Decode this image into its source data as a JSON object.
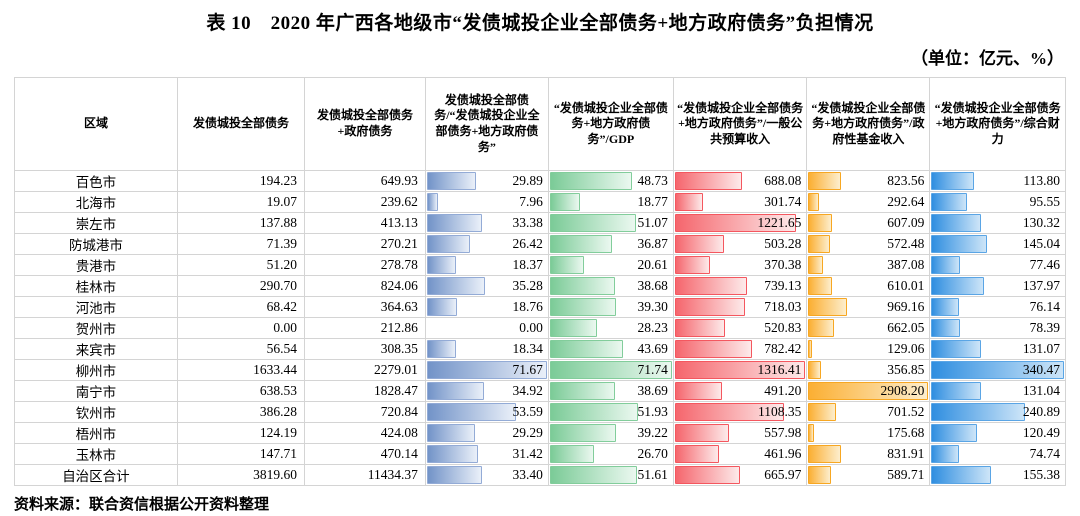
{
  "title": "表 10　2020 年广西各地级市“发债城投企业全部债务+地方政府债务”负担情况",
  "unit_note": "（单位：亿元、%）",
  "source_note": "资料来源：联合资信根据公开资料整理",
  "colors": {
    "grid_line": "#d4d4d4",
    "text": "#000000"
  },
  "table": {
    "columns": [
      {
        "label": "区域",
        "type": "text"
      },
      {
        "label": "发债城投全部债务",
        "type": "number"
      },
      {
        "label": "发债城投全部债务+政府债务",
        "type": "number"
      },
      {
        "label": "发债城投全部债务/“发债城投企业全部债务+地方政府债务”",
        "type": "bar",
        "colors": {
          "solid": "#7293c8",
          "light": "#eaf0f9",
          "border": "#93abd6"
        }
      },
      {
        "label": "“发债城投企业全部债务+地方政府债务”/GDP",
        "type": "bar",
        "colors": {
          "solid": "#7bcb97",
          "light": "#ebf8f0",
          "border": "#82cd9b"
        }
      },
      {
        "label": "“发债城投企业全部债务+地方政府债务”/一般公共预算收入",
        "type": "bar",
        "colors": {
          "solid": "#f5666d",
          "light": "#fdeaea",
          "border": "#f4575f"
        }
      },
      {
        "label": "“发债城投企业全部债务+地方政府债务”/政府性基金收入",
        "type": "bar",
        "colors": {
          "solid": "#fbaf33",
          "light": "#fdeecd",
          "border": "#f7a722"
        }
      },
      {
        "label": "“发债城投企业全部债务+地方政府债务”/综合财力",
        "type": "bar",
        "colors": {
          "solid": "#2f8ee0",
          "light": "#cde5f8",
          "border": "#5aa5e5"
        }
      }
    ],
    "rows": [
      [
        "百色市",
        "194.23",
        "649.93",
        "29.89",
        "48.73",
        "688.08",
        "823.56",
        "113.80"
      ],
      [
        "北海市",
        "19.07",
        "239.62",
        "7.96",
        "18.77",
        "301.74",
        "292.64",
        "95.55"
      ],
      [
        "崇左市",
        "137.88",
        "413.13",
        "33.38",
        "51.07",
        "1221.65",
        "607.09",
        "130.32"
      ],
      [
        "防城港市",
        "71.39",
        "270.21",
        "26.42",
        "36.87",
        "503.28",
        "572.48",
        "145.04"
      ],
      [
        "贵港市",
        "51.20",
        "278.78",
        "18.37",
        "20.61",
        "370.38",
        "387.08",
        "77.46"
      ],
      [
        "桂林市",
        "290.70",
        "824.06",
        "35.28",
        "38.68",
        "739.13",
        "610.01",
        "137.97"
      ],
      [
        "河池市",
        "68.42",
        "364.63",
        "18.76",
        "39.30",
        "718.03",
        "969.16",
        "76.14"
      ],
      [
        "贺州市",
        "0.00",
        "212.86",
        "0.00",
        "28.23",
        "520.83",
        "662.05",
        "78.39"
      ],
      [
        "来宾市",
        "56.54",
        "308.35",
        "18.34",
        "43.69",
        "782.42",
        "129.06",
        "131.07"
      ],
      [
        "柳州市",
        "1633.44",
        "2279.01",
        "71.67",
        "71.74",
        "1316.41",
        "356.85",
        "340.47"
      ],
      [
        "南宁市",
        "638.53",
        "1828.47",
        "34.92",
        "38.69",
        "491.20",
        "2908.20",
        "131.04"
      ],
      [
        "钦州市",
        "386.28",
        "720.84",
        "53.59",
        "51.93",
        "1108.35",
        "701.52",
        "240.89"
      ],
      [
        "梧州市",
        "124.19",
        "424.08",
        "29.29",
        "39.22",
        "557.98",
        "175.68",
        "120.49"
      ],
      [
        "玉林市",
        "147.71",
        "470.14",
        "31.42",
        "26.70",
        "461.96",
        "831.91",
        "74.74"
      ],
      [
        "自治区合计",
        "3819.60",
        "11434.37",
        "33.40",
        "51.61",
        "665.97",
        "589.71",
        "155.38"
      ]
    ]
  }
}
